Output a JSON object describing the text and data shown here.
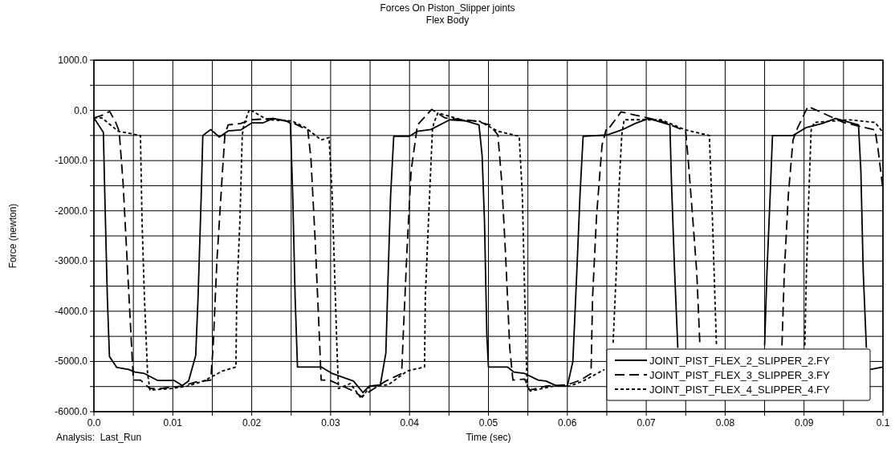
{
  "chart_data": {
    "type": "line",
    "title": "Forces On Piston_Slipper joints",
    "subtitle": "Flex Body",
    "xlabel": "Time (sec)",
    "ylabel": "Force (newton)",
    "annotations": [
      "Analysis:  Last_Run"
    ],
    "xlim": [
      0,
      0.1
    ],
    "ylim": [
      -6000,
      1000
    ],
    "xticks": [
      {
        "value": 0,
        "label": "0.0"
      },
      {
        "value": 0.005,
        "label": null
      },
      0.01,
      {
        "value": 0.015,
        "label": null
      },
      0.02,
      {
        "value": 0.025,
        "label": null
      },
      0.03,
      {
        "value": 0.035,
        "label": null
      },
      0.04,
      {
        "value": 0.045,
        "label": null
      },
      0.05,
      {
        "value": 0.055,
        "label": null
      },
      0.06,
      {
        "value": 0.065,
        "label": null
      },
      0.07,
      {
        "value": 0.075,
        "label": null
      },
      0.08,
      {
        "value": 0.085,
        "label": null
      },
      0.09,
      {
        "value": 0.095,
        "label": null
      },
      0.1
    ],
    "yticks": [
      {
        "value": -6000,
        "label": "-6000.0"
      },
      {
        "value": -5500,
        "label": null
      },
      {
        "value": -5000,
        "label": "-5000.0"
      },
      {
        "value": -4500,
        "label": null
      },
      {
        "value": -4000,
        "label": "-4000.0"
      },
      {
        "value": -3500,
        "label": null
      },
      {
        "value": -3000,
        "label": "-3000.0"
      },
      {
        "value": -2500,
        "label": null
      },
      {
        "value": -2000,
        "label": "-2000.0"
      },
      {
        "value": -1500,
        "label": null
      },
      {
        "value": -1000,
        "label": "-1000.0"
      },
      {
        "value": -500,
        "label": null
      },
      {
        "value": 0,
        "label": "0.0"
      },
      {
        "value": 500,
        "label": null
      },
      {
        "value": 1000,
        "label": "1000.0"
      }
    ],
    "grid": true,
    "legend": "bottom right",
    "marker": "none",
    "series": [
      {
        "name": "JOINT_PIST_FLEX_2_SLIPPER_2.FY",
        "color": "#000000",
        "line_style": "solid",
        "x": [
          0,
          0.0012,
          0.00136,
          0.0017,
          0.00197,
          0.0029,
          0.0044,
          0.0052,
          0.0064,
          0.0081,
          0.0102,
          0.0112,
          0.012,
          0.0129,
          0.0132,
          0.0136,
          0.0138,
          0.0148,
          0.0159,
          0.017,
          0.0186,
          0.02,
          0.0214,
          0.0227,
          0.0244,
          0.0249,
          0.0252,
          0.0255,
          0.0258,
          0.0288,
          0.0302,
          0.0329,
          0.0341,
          0.0349,
          0.0363,
          0.037,
          0.0373,
          0.0376,
          0.038,
          0.04,
          0.041,
          0.0427,
          0.0451,
          0.0471,
          0.0488,
          0.0492,
          0.0495,
          0.0498,
          0.05,
          0.0524,
          0.0532,
          0.0546,
          0.0563,
          0.0573,
          0.0587,
          0.06,
          0.0607,
          0.0612,
          0.0616,
          0.062,
          0.065,
          0.0669,
          0.0686,
          0.0703,
          0.073,
          0.0732,
          0.0736,
          0.074,
          0.08,
          0.085,
          0.0853,
          0.0857,
          0.086,
          0.0886,
          0.0903,
          0.0923,
          0.094,
          0.0969,
          0.0972,
          0.0975,
          0.0979,
          0.0982,
          0.0984,
          0.1
        ],
        "values": [
          -150,
          -440,
          -1550,
          -3720,
          -4900,
          -5120,
          -5160,
          -5210,
          -5240,
          -5380,
          -5380,
          -5480,
          -5390,
          -4880,
          -3720,
          -1700,
          -500,
          -380,
          -530,
          -410,
          -390,
          -250,
          -250,
          -160,
          -210,
          -260,
          -1700,
          -3720,
          -5110,
          -5110,
          -5240,
          -5390,
          -5620,
          -5490,
          -5465,
          -4830,
          -3220,
          -1700,
          -515,
          -515,
          -415,
          -380,
          -187,
          -210,
          -290,
          -900,
          -2210,
          -4480,
          -5110,
          -5110,
          -5210,
          -5240,
          -5370,
          -5390,
          -5490,
          -5490,
          -5000,
          -3220,
          -1700,
          -515,
          -490,
          -390,
          -260,
          -160,
          -290,
          -1450,
          -3220,
          -4730,
          null,
          -4680,
          -3220,
          -1700,
          -500,
          -500,
          -340,
          -260,
          -160,
          -290,
          -1200,
          -3220,
          -4730,
          null,
          -5160,
          -5110
        ]
      },
      {
        "name": "JOINT_PIST_FLEX_3_SLIPPER_3.FY",
        "color": "#000000",
        "line_style": "dashed",
        "x": [
          0,
          0.001,
          0.002,
          0.0028,
          0.0032,
          0.0037,
          0.0042,
          0.0047,
          0.005,
          0.0059,
          0.0071,
          0.0085,
          0.0098,
          0.0112,
          0.0129,
          0.0148,
          0.0151,
          0.0156,
          0.0163,
          0.0166,
          0.017,
          0.0186,
          0.02,
          0.0227,
          0.0251,
          0.0271,
          0.0275,
          0.028,
          0.0285,
          0.0288,
          0.0298,
          0.0315,
          0.0329,
          0.0339,
          0.037,
          0.039,
          0.0392,
          0.0397,
          0.0402,
          0.0409,
          0.041,
          0.0428,
          0.0445,
          0.0482,
          0.0502,
          0.0512,
          0.0517,
          0.0522,
          0.0527,
          0.0531,
          0.0546,
          0.0552,
          0.0573,
          0.06,
          0.0617,
          0.063,
          0.0632,
          0.0637,
          0.0644,
          0.0649,
          0.065,
          0.0668,
          0.0719,
          0.075,
          0.0753,
          0.0758,
          0.0764,
          0.0768,
          0.082,
          0.0872,
          0.0875,
          0.088,
          0.0886,
          0.0892,
          0.0905,
          0.095,
          0.099,
          0.0994,
          0.0999,
          0.1
        ],
        "values": [
          -150,
          -100,
          -20,
          -250,
          -415,
          -1450,
          -2960,
          -4480,
          -5370,
          -5370,
          -5540,
          -5540,
          -5510,
          -5490,
          -5410,
          -5370,
          -4730,
          -2960,
          -1200,
          -490,
          -290,
          -260,
          -187,
          -160,
          -240,
          -390,
          -950,
          -2460,
          -4230,
          -5370,
          -5370,
          -5490,
          -5590,
          -5700,
          -5390,
          -5240,
          -4480,
          -2710,
          -1200,
          -415,
          -290,
          20,
          -150,
          -210,
          -290,
          -490,
          -1450,
          -2960,
          -4730,
          -5370,
          -5350,
          -5570,
          -5490,
          -5465,
          -5370,
          -5240,
          -3720,
          -2110,
          -690,
          -390,
          -415,
          -30,
          -210,
          -415,
          -950,
          -1960,
          -3220,
          -4680,
          null,
          -4680,
          -3220,
          -1700,
          -590,
          -340,
          80,
          -240,
          -390,
          -800,
          -1450,
          -1600
        ]
      },
      {
        "name": "JOINT_PIST_FLEX_4_SLIPPER_4.FY",
        "color": "#000000",
        "line_style": "dotted",
        "x": [
          0,
          0.001,
          0.0031,
          0.0059,
          0.0061,
          0.0064,
          0.0068,
          0.0071,
          0.0098,
          0.0119,
          0.0139,
          0.0163,
          0.018,
          0.0181,
          0.0185,
          0.0188,
          0.019,
          0.0197,
          0.022,
          0.0251,
          0.0268,
          0.0288,
          0.0298,
          0.0302,
          0.0305,
          0.0308,
          0.031,
          0.0325,
          0.0339,
          0.035,
          0.0373,
          0.0397,
          0.0419,
          0.042,
          0.0424,
          0.0429,
          0.0431,
          0.0436,
          0.0471,
          0.0488,
          0.0512,
          0.0539,
          0.0543,
          0.0546,
          0.0549,
          0.0553,
          0.0583,
          0.0603,
          0.062,
          0.0647,
          0.0652,
          0.0658,
          0.0662,
          0.0665,
          0.0669,
          0.0672,
          0.0719,
          0.075,
          0.078,
          0.0784,
          0.0787,
          0.0789,
          0.085,
          0.0901,
          0.0903,
          0.0906,
          0.0909,
          0.0913,
          0.0957,
          0.099,
          0.1
        ],
        "values": [
          -150,
          -150,
          -415,
          -500,
          -2210,
          -3720,
          -5240,
          -5570,
          -5540,
          -5490,
          -5390,
          -5190,
          -5110,
          -3720,
          -2210,
          -500,
          -290,
          20,
          -187,
          -210,
          -340,
          -590,
          -540,
          -1700,
          -3220,
          -4730,
          -5540,
          -5440,
          -5740,
          -5490,
          -5465,
          -5190,
          -5110,
          -3720,
          -2210,
          -390,
          -240,
          -50,
          -210,
          -210,
          -415,
          -515,
          -1700,
          -3720,
          -5490,
          -5590,
          -5490,
          -5490,
          -5390,
          -5160,
          null,
          -4630,
          -3220,
          -1700,
          -490,
          -187,
          -187,
          -390,
          -500,
          -2210,
          -3720,
          -4680,
          null,
          -4680,
          -3220,
          -1700,
          -390,
          -240,
          -187,
          -240,
          -440
        ]
      }
    ]
  }
}
